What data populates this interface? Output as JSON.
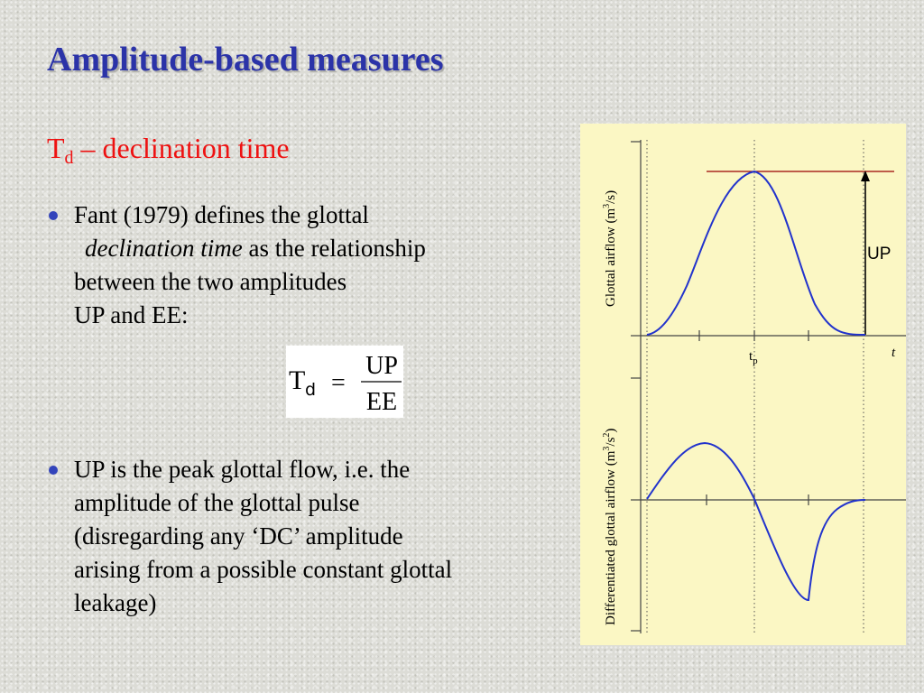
{
  "slide": {
    "title": "Amplitude-based measures",
    "subtitle": {
      "symbol": "T",
      "subscript": "d",
      "rest": " – declination time"
    },
    "bullet1": {
      "line1": "Fant (1979) defines the glottal",
      "emph": "declination time",
      "line2_rest": " as the relationship",
      "line3": "between the two amplitudes",
      "line4": "UP and EE:"
    },
    "formula": {
      "lhs": "T",
      "lhs_sub": "d",
      "equals": "=",
      "numerator": "UP",
      "denominator": "EE"
    },
    "bullet2": {
      "lines": [
        "UP is the peak glottal flow, i.e. the",
        "amplitude of the glottal pulse",
        "(disregarding any ‘DC’ amplitude",
        "arising from a possible constant glottal",
        "leakage)"
      ]
    }
  },
  "figure": {
    "top_ylabel": "Glottal airflow (m",
    "top_ylabel_sup": "3",
    "top_ylabel_end": "/s)",
    "bottom_ylabel": "Differentiated glottal airflow (m",
    "bottom_ylabel_sup1": "3",
    "bottom_ylabel_mid": "/s",
    "bottom_ylabel_sup2": "2",
    "bottom_ylabel_end": ")",
    "tp_label": "t",
    "tp_sub": "p",
    "t_label": "t",
    "up_label": "UP",
    "colors": {
      "curve": "#2233cc",
      "peak_line": "#990000",
      "panel_bg": "#fbf7c4"
    }
  }
}
